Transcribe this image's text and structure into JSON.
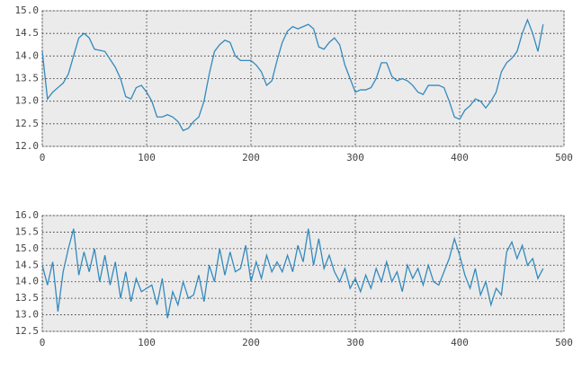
{
  "chart_data": [
    {
      "type": "line",
      "x": [
        0,
        5,
        10,
        15,
        20,
        25,
        30,
        35,
        40,
        45,
        50,
        60,
        70,
        75,
        80,
        85,
        90,
        95,
        100,
        105,
        110,
        115,
        120,
        125,
        130,
        135,
        140,
        145,
        150,
        155,
        160,
        165,
        170,
        175,
        180,
        185,
        190,
        195,
        200,
        205,
        210,
        215,
        220,
        225,
        230,
        235,
        240,
        245,
        250,
        255,
        260,
        265,
        270,
        275,
        280,
        285,
        290,
        295,
        300,
        305,
        310,
        315,
        320,
        325,
        330,
        335,
        340,
        345,
        350,
        355,
        360,
        365,
        370,
        375,
        380,
        385,
        390,
        395,
        400,
        405,
        410,
        415,
        420,
        425,
        430,
        435,
        440,
        445,
        450,
        455,
        460,
        465,
        470,
        475,
        480
      ],
      "series": [
        {
          "color": "#348abd",
          "values": [
            14.1,
            13.05,
            13.2,
            13.3,
            13.4,
            13.6,
            14.0,
            14.4,
            14.5,
            14.4,
            14.15,
            14.1,
            13.75,
            13.5,
            13.1,
            13.05,
            13.3,
            13.35,
            13.2,
            13.0,
            12.65,
            12.65,
            12.7,
            12.65,
            12.55,
            12.35,
            12.4,
            12.55,
            12.65,
            13.0,
            13.6,
            14.1,
            14.25,
            14.35,
            14.3,
            14.0,
            13.9,
            13.9,
            13.9,
            13.8,
            13.65,
            13.35,
            13.45,
            13.9,
            14.3,
            14.55,
            14.65,
            14.6,
            14.65,
            14.7,
            14.6,
            14.2,
            14.15,
            14.3,
            14.4,
            14.25,
            13.8,
            13.5,
            13.2,
            13.25,
            13.25,
            13.3,
            13.5,
            13.85,
            13.85,
            13.55,
            13.45,
            13.5,
            13.45,
            13.35,
            13.2,
            13.15,
            13.35,
            13.35,
            13.35,
            13.3,
            13.0,
            12.65,
            12.6,
            12.8,
            12.9,
            13.05,
            13.0,
            12.85,
            13.0,
            13.2,
            13.65,
            13.85,
            13.95,
            14.1,
            14.5,
            14.8,
            14.5,
            14.1,
            14.7
          ]
        }
      ],
      "xlim": [
        0,
        500
      ],
      "xticks": [
        0,
        100,
        200,
        300,
        400,
        500
      ],
      "ylim": [
        12,
        15
      ],
      "yticks": [
        {
          "value": 12,
          "label": "12.0"
        },
        12.5,
        {
          "value": 13,
          "label": "13.0"
        },
        13.5,
        {
          "value": 14,
          "label": "14.0"
        },
        14.5,
        {
          "value": 15,
          "label": "15.0"
        }
      ],
      "grid": true
    },
    {
      "type": "line",
      "x": [
        0,
        5,
        10,
        15,
        20,
        25,
        30,
        35,
        40,
        45,
        50,
        55,
        60,
        65,
        70,
        75,
        80,
        85,
        90,
        95,
        100,
        105,
        110,
        115,
        120,
        125,
        130,
        135,
        140,
        145,
        150,
        155,
        160,
        165,
        170,
        175,
        180,
        185,
        190,
        195,
        200,
        205,
        210,
        215,
        220,
        225,
        230,
        235,
        240,
        245,
        250,
        255,
        260,
        265,
        270,
        275,
        280,
        285,
        290,
        295,
        300,
        305,
        310,
        315,
        320,
        325,
        330,
        335,
        340,
        345,
        350,
        355,
        360,
        365,
        370,
        375,
        380,
        385,
        390,
        395,
        400,
        405,
        410,
        415,
        420,
        425,
        430,
        435,
        440,
        445,
        450,
        455,
        460,
        465,
        470,
        475,
        480
      ],
      "series": [
        {
          "color": "#348abd",
          "values": [
            14.5,
            13.9,
            14.6,
            13.1,
            14.3,
            15.0,
            15.6,
            14.2,
            14.9,
            14.3,
            15.0,
            14.0,
            14.8,
            13.9,
            14.6,
            13.5,
            14.3,
            13.4,
            14.1,
            13.7,
            13.8,
            13.9,
            13.3,
            14.1,
            12.9,
            13.7,
            13.3,
            14.0,
            13.5,
            13.6,
            14.2,
            13.4,
            14.5,
            14.0,
            15.0,
            14.2,
            14.9,
            14.3,
            14.4,
            15.1,
            14.0,
            14.6,
            14.1,
            14.8,
            14.3,
            14.6,
            14.3,
            14.8,
            14.3,
            15.1,
            14.6,
            15.6,
            14.5,
            15.3,
            14.4,
            14.8,
            14.3,
            14.0,
            14.4,
            13.8,
            14.1,
            13.7,
            14.2,
            13.8,
            14.4,
            14.0,
            14.6,
            14.0,
            14.3,
            13.7,
            14.5,
            14.1,
            14.4,
            13.9,
            14.5,
            14.0,
            13.9,
            14.3,
            14.7,
            15.3,
            14.8,
            14.2,
            13.8,
            14.4,
            13.6,
            14.0,
            13.3,
            13.8,
            13.6,
            14.9,
            15.2,
            14.7,
            15.1,
            14.5,
            14.7,
            14.1,
            14.4
          ]
        }
      ],
      "xlim": [
        0,
        500
      ],
      "xticks": [
        0,
        100,
        200,
        300,
        400,
        500
      ],
      "ylim": [
        12.5,
        16
      ],
      "yticks": [
        12.5,
        {
          "value": 13,
          "label": "13.0"
        },
        13.5,
        {
          "value": 14,
          "label": "14.0"
        },
        14.5,
        {
          "value": 15,
          "label": "15.0"
        },
        15.5,
        {
          "value": 16,
          "label": "16.0"
        }
      ],
      "grid": true
    }
  ]
}
